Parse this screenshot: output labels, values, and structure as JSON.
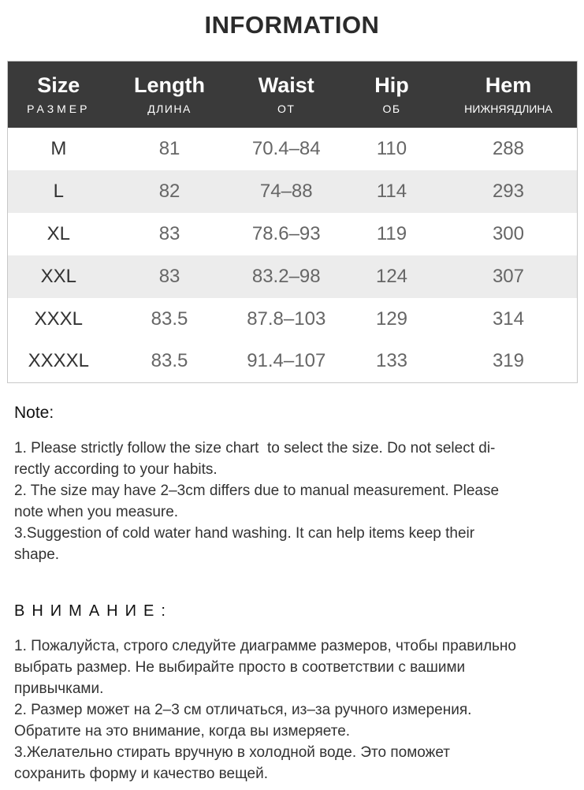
{
  "title": "INFORMATION",
  "table": {
    "columns": [
      {
        "en": "Size",
        "ru": "РАЗМЕР"
      },
      {
        "en": "Length",
        "ru": "ДЛИНА"
      },
      {
        "en": "Waist",
        "ru": "ОТ"
      },
      {
        "en": "Hip",
        "ru": "ОБ"
      },
      {
        "en": "Hem",
        "ru": "НИЖНЯЯДЛИНА"
      }
    ],
    "rows": [
      [
        "M",
        "81",
        "70.4–84",
        "110",
        "288"
      ],
      [
        "L",
        "82",
        "74–88",
        "114",
        "293"
      ],
      [
        "XL",
        "83",
        "78.6–93",
        "119",
        "300"
      ],
      [
        "XXL",
        "83",
        "83.2–98",
        "124",
        "307"
      ],
      [
        "XXXL",
        "83.5",
        "87.8–103",
        "129",
        "314"
      ],
      [
        "XXXXL",
        "83.5",
        "91.4–107",
        "133",
        "319"
      ]
    ]
  },
  "note": {
    "heading": "Note:",
    "lines": [
      "1. Please strictly follow the size chart  to select the size. Do not select di-",
      "rectly according to your habits.",
      "2. The size may have 2–3cm differs due to manual measurement. Please",
      "note when you measure.",
      "3.Suggestion of cold water hand washing. It can help items keep their",
      "shape."
    ]
  },
  "attention": {
    "heading": "ВНИМАНИЕ:",
    "lines": [
      "1. Пожалуйста, строго следуйте диаграмме размеров, чтобы правильно",
      "выбрать размер. Не выбирайте просто в соответствии с вашими",
      "привычками.",
      "2. Размер может на 2–3 см отличаться, из–за ручного измерения.",
      "Обратите на это внимание, когда вы измеряете.",
      "3.Желательно стирать вручную в холодной воде. Это поможет",
      "сохранить форму и качество вещей."
    ]
  },
  "colors": {
    "header_bg": "#3a3a3a",
    "header_text": "#ffffff",
    "row_stripe": "#ececec",
    "table_border": "#c8c8c8",
    "cell_text": "#666666",
    "size_cell_text": "#333333",
    "title_text": "#2b2b2b"
  }
}
